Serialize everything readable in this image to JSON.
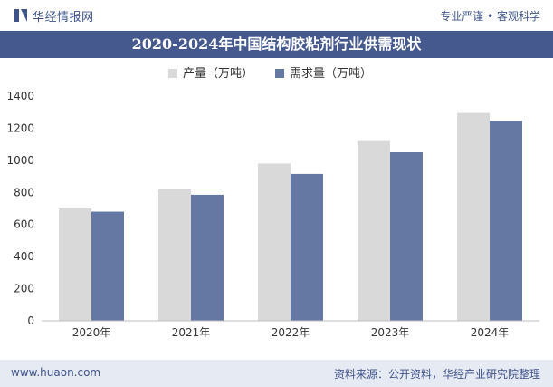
{
  "header": {
    "brand": "华经情报网",
    "tagline": "专业严谨 • 客观科学"
  },
  "footer": {
    "url": "www.huaon.com",
    "source": "资料来源：公开资料，华经产业研究院整理"
  },
  "colors": {
    "production": "#d9d9d9",
    "demand": "#6577a3",
    "title_bar": "#46598f",
    "brand": "#3f5489"
  },
  "chart_data": {
    "type": "bar",
    "title": "2020-2024年中国结构胶粘剂行业供需现状",
    "categories": [
      "2020年",
      "2021年",
      "2022年",
      "2023年",
      "2024年"
    ],
    "series": [
      {
        "name": "产量（万吨）",
        "values": [
          700,
          820,
          980,
          1120,
          1295
        ]
      },
      {
        "name": "需求量（万吨）",
        "values": [
          680,
          785,
          915,
          1050,
          1245
        ]
      }
    ],
    "yticks": [
      0,
      200,
      400,
      600,
      800,
      1000,
      1200,
      1400
    ],
    "ylim": [
      0,
      1400
    ],
    "legend_position": "top",
    "grid": false
  }
}
